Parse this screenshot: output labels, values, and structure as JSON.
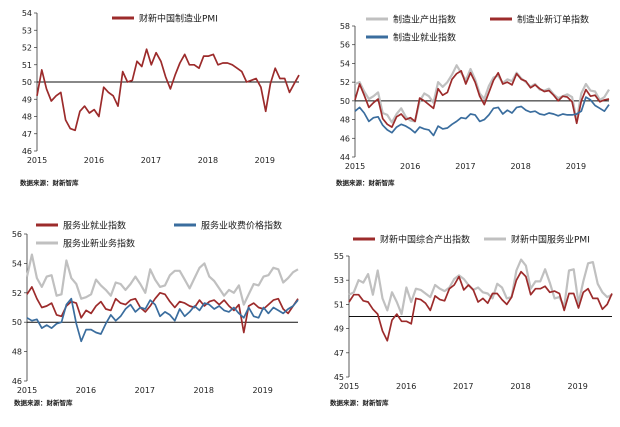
{
  "chart_data": [
    {
      "type": "line",
      "xlabel": "",
      "ylabel": "",
      "ylim": [
        46,
        54
      ],
      "yticks": [
        46,
        47,
        48,
        49,
        50,
        51,
        52,
        53,
        54
      ],
      "xlim": [
        2015,
        2019.6
      ],
      "xticks": [
        "2015",
        "2016",
        "2017",
        "2018",
        "2019"
      ],
      "reference_line": 50,
      "source": "数据来源：财新智库",
      "series": [
        {
          "name": "财新中国制造业PMI",
          "color": "#9c2b2b",
          "values": [
            49.2,
            50.7,
            49.6,
            48.9,
            49.2,
            49.4,
            47.8,
            47.3,
            47.2,
            48.3,
            48.6,
            48.2,
            48.4,
            48.0,
            49.7,
            49.4,
            49.2,
            48.6,
            50.6,
            50.0,
            50.1,
            51.2,
            50.9,
            51.9,
            51.0,
            51.7,
            51.2,
            50.3,
            49.6,
            50.4,
            51.1,
            51.6,
            51.0,
            51.0,
            50.8,
            51.5,
            51.5,
            51.6,
            51.0,
            51.1,
            51.1,
            51.0,
            50.8,
            50.6,
            50.0,
            50.1,
            50.2,
            49.7,
            48.3,
            49.9,
            50.8,
            50.2,
            50.2,
            49.4,
            49.9,
            50.4
          ]
        }
      ]
    },
    {
      "type": "line",
      "xlabel": "",
      "ylabel": "",
      "ylim": [
        44,
        58
      ],
      "yticks": [
        44,
        46,
        48,
        50,
        52,
        54,
        56,
        58
      ],
      "xlim": [
        2015,
        2019.6
      ],
      "xticks": [
        "2015",
        "2016",
        "2017",
        "2018",
        "2019"
      ],
      "reference_line": 50,
      "source": "数据来源：财新智库",
      "series": [
        {
          "name": "制造业产出指数",
          "color": "#c0c0c0",
          "values": [
            51.8,
            52.0,
            51.0,
            50.2,
            50.5,
            50.9,
            48.7,
            48.5,
            47.7,
            48.6,
            49.2,
            48.3,
            47.9,
            47.8,
            50.0,
            50.8,
            50.5,
            49.8,
            52.0,
            51.5,
            52.0,
            52.8,
            53.8,
            53.0,
            52.2,
            53.4,
            52.3,
            50.8,
            50.2,
            51.6,
            52.5,
            52.7,
            51.9,
            52.3,
            52.1,
            53.0,
            52.4,
            52.0,
            51.5,
            51.8,
            51.2,
            51.1,
            51.3,
            50.7,
            50.3,
            50.5,
            50.7,
            50.4,
            47.9,
            50.8,
            51.8,
            51.1,
            51.0,
            50.1,
            50.4,
            51.2
          ]
        },
        {
          "name": "制造业新订单指数",
          "color": "#9c2b2b",
          "values": [
            50.1,
            51.8,
            50.6,
            49.3,
            49.8,
            50.2,
            48.1,
            47.5,
            47.2,
            48.3,
            48.6,
            48.0,
            48.2,
            47.8,
            50.3,
            50.0,
            49.6,
            49.2,
            51.3,
            50.6,
            50.9,
            52.3,
            52.9,
            53.2,
            51.8,
            53.0,
            52.0,
            50.5,
            49.6,
            50.9,
            52.2,
            53.0,
            51.8,
            52.0,
            51.7,
            52.9,
            52.3,
            52.1,
            51.4,
            51.7,
            51.3,
            51.0,
            51.1,
            50.6,
            50.0,
            50.5,
            50.4,
            49.9,
            47.6,
            50.0,
            51.2,
            50.5,
            50.6,
            49.9,
            50.1,
            50.2
          ]
        },
        {
          "name": "制造业就业指数",
          "color": "#3a6d9e",
          "values": [
            48.9,
            49.3,
            48.7,
            47.8,
            48.2,
            48.3,
            47.4,
            46.9,
            46.6,
            47.2,
            47.5,
            47.3,
            47.0,
            46.6,
            47.2,
            47.0,
            46.9,
            46.3,
            47.3,
            47.0,
            47.1,
            47.5,
            47.8,
            48.2,
            48.1,
            48.6,
            48.5,
            47.8,
            48.0,
            48.5,
            49.2,
            49.3,
            48.6,
            49.0,
            48.7,
            49.3,
            49.4,
            49.0,
            48.8,
            48.9,
            48.6,
            48.5,
            48.7,
            48.6,
            48.4,
            48.6,
            48.5,
            48.5,
            48.6,
            48.9,
            50.4,
            50.1,
            49.5,
            49.2,
            48.9,
            49.6
          ]
        }
      ]
    },
    {
      "type": "line",
      "xlabel": "",
      "ylabel": "",
      "ylim": [
        46,
        56
      ],
      "yticks": [
        46,
        48,
        50,
        52,
        54,
        56
      ],
      "xlim": [
        2015,
        2019.6
      ],
      "xticks": [
        "2015",
        "2016",
        "2017",
        "2018",
        "2019"
      ],
      "reference_line": 50,
      "source": "数据来源：财新智库",
      "series": [
        {
          "name": "服务业就业指数",
          "color": "#9c2b2b",
          "values": [
            51.9,
            52.4,
            51.6,
            51.0,
            51.1,
            51.3,
            50.5,
            50.4,
            51.1,
            51.4,
            51.3,
            50.3,
            50.8,
            50.6,
            51.1,
            51.4,
            50.9,
            50.8,
            51.6,
            51.3,
            51.2,
            51.5,
            51.6,
            51.0,
            50.7,
            51.1,
            51.6,
            52.0,
            51.9,
            51.4,
            51.0,
            51.4,
            51.3,
            51.1,
            51.0,
            51.5,
            51.1,
            51.4,
            51.5,
            51.2,
            51.5,
            51.1,
            50.8,
            51.2,
            49.3,
            51.1,
            51.3,
            51.0,
            50.9,
            51.2,
            51.5,
            51.6,
            50.9,
            50.6,
            51.1,
            51.6
          ]
        },
        {
          "name": "服务业收费价格指数",
          "color": "#3a6d9e",
          "values": [
            50.3,
            50.1,
            50.2,
            49.6,
            49.8,
            49.6,
            49.9,
            50.0,
            51.2,
            51.6,
            49.9,
            48.7,
            49.5,
            49.5,
            49.3,
            49.2,
            49.9,
            50.5,
            50.1,
            50.4,
            50.9,
            51.2,
            50.7,
            51.0,
            50.9,
            51.5,
            51.2,
            50.4,
            50.7,
            50.5,
            50.1,
            50.9,
            50.4,
            50.7,
            51.1,
            50.8,
            51.3,
            51.2,
            50.9,
            51.1,
            50.8,
            50.7,
            51.0,
            50.6,
            50.3,
            51.0,
            50.4,
            50.3,
            51.0,
            50.6,
            51.0,
            50.8,
            50.6,
            50.9,
            51.1,
            51.5
          ]
        },
        {
          "name": "服务业新业务指数",
          "color": "#c0c0c0",
          "values": [
            53.1,
            54.6,
            53.0,
            52.4,
            53.1,
            53.2,
            51.8,
            51.9,
            54.2,
            53.0,
            52.6,
            51.6,
            51.7,
            51.9,
            52.9,
            52.5,
            52.2,
            51.8,
            52.7,
            52.6,
            52.2,
            52.6,
            53.1,
            52.6,
            52.0,
            53.6,
            52.9,
            52.4,
            52.5,
            53.2,
            53.5,
            53.5,
            52.9,
            52.3,
            53.0,
            53.7,
            54.0,
            53.1,
            52.8,
            52.3,
            51.8,
            52.2,
            52.0,
            52.5,
            51.2,
            51.9,
            52.6,
            52.5,
            53.1,
            53.2,
            53.7,
            53.6,
            52.7,
            53.0,
            53.4,
            53.6
          ]
        }
      ]
    },
    {
      "type": "line",
      "xlabel": "",
      "ylabel": "",
      "ylim": [
        45,
        55
      ],
      "yticks": [
        45,
        47,
        49,
        51,
        53,
        55
      ],
      "xlim": [
        2015,
        2019.6
      ],
      "xticks": [
        "2015",
        "2016",
        "2017",
        "2018",
        "2019"
      ],
      "reference_line": 50,
      "source": "数据来源：财新智库",
      "series": [
        {
          "name": "财新中国综合产出指数",
          "color": "#9c2b2b",
          "values": [
            51.2,
            51.8,
            51.8,
            51.3,
            51.2,
            50.6,
            50.2,
            48.8,
            48.0,
            49.7,
            50.2,
            49.6,
            49.6,
            49.4,
            51.5,
            51.4,
            51.1,
            50.5,
            51.7,
            51.4,
            51.3,
            52.3,
            52.6,
            53.3,
            52.2,
            52.6,
            52.2,
            51.2,
            51.5,
            51.1,
            51.9,
            51.9,
            51.4,
            51.0,
            51.6,
            53.0,
            53.7,
            53.3,
            51.8,
            52.3,
            52.3,
            52.5,
            52.0,
            52.1,
            51.9,
            50.5,
            51.9,
            51.9,
            50.7,
            52.0,
            52.3,
            51.5,
            51.5,
            50.6,
            51.0,
            51.9
          ]
        },
        {
          "name": "财新中国服务业PMI",
          "color": "#c0c0c0",
          "values": [
            51.8,
            52.0,
            53.0,
            52.8,
            53.5,
            51.8,
            53.8,
            51.5,
            50.5,
            52.0,
            51.2,
            50.2,
            52.4,
            51.2,
            52.3,
            52.2,
            51.9,
            51.6,
            52.6,
            52.3,
            52.1,
            52.4,
            53.1,
            53.4,
            53.1,
            52.6,
            52.2,
            52.4,
            52.0,
            51.9,
            51.5,
            52.7,
            52.4,
            51.5,
            51.6,
            53.8,
            54.7,
            54.2,
            52.3,
            52.9,
            52.9,
            53.9,
            52.8,
            51.5,
            51.6,
            50.8,
            53.8,
            53.9,
            51.1,
            52.9,
            54.4,
            54.5,
            52.7,
            52.0,
            51.6,
            51.8
          ]
        }
      ]
    }
  ]
}
